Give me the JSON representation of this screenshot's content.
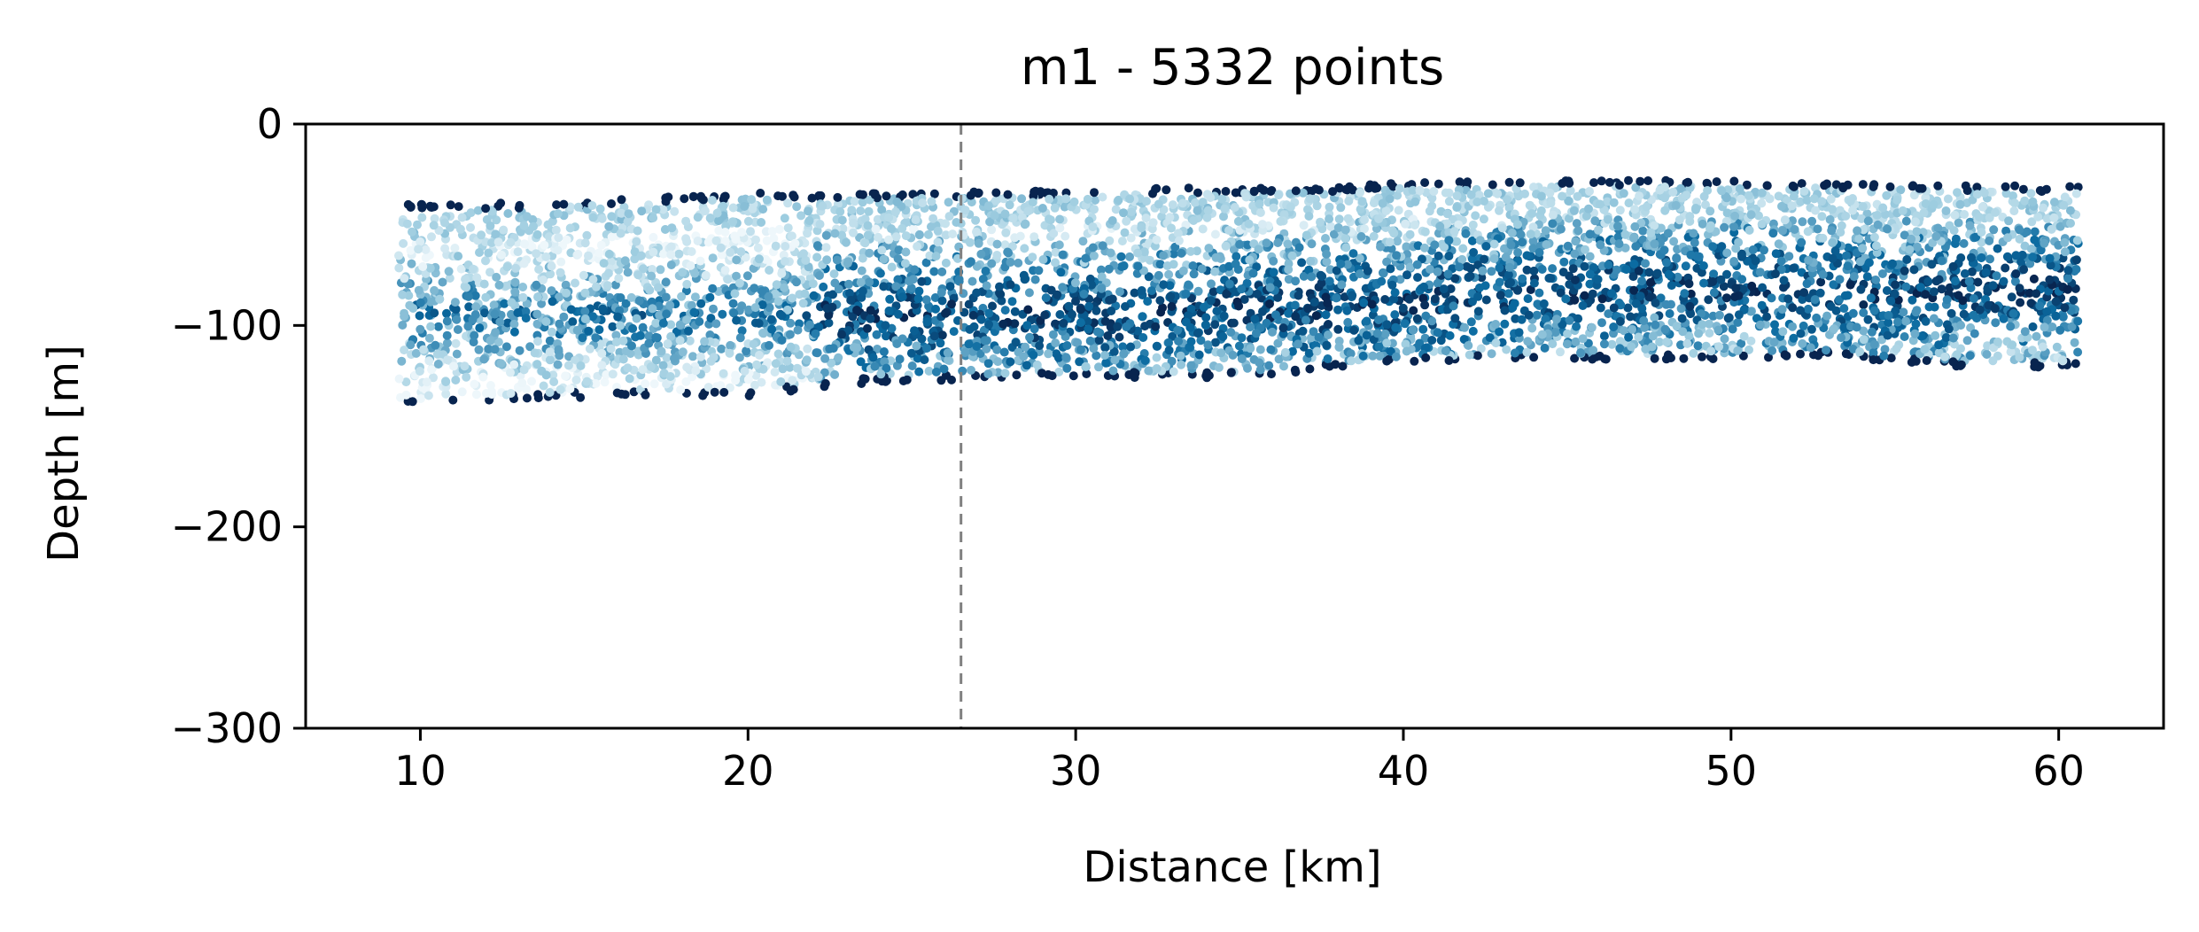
{
  "chart_data": {
    "type": "scatter",
    "title": "m1 - 5332 points",
    "xlabel": "Distance [km]",
    "ylabel": "Depth [m]",
    "xlim": [
      6.5,
      63.2
    ],
    "ylim": [
      -300,
      0
    ],
    "xticks": [
      10,
      20,
      30,
      40,
      50,
      60
    ],
    "xtick_labels": [
      "10",
      "20",
      "30",
      "40",
      "50",
      "60"
    ],
    "yticks": [
      0,
      -100,
      -200,
      -300
    ],
    "ytick_labels": [
      "0",
      "−100",
      "−200",
      "−300"
    ],
    "grid": false,
    "legend": "none",
    "colormap": "blues (white to dark navy)",
    "point_count": 5332,
    "reference_line": {
      "x": 26.5,
      "style": "dashed",
      "color": "#808080"
    },
    "top_boundary": [
      {
        "x": 9.3,
        "y": -40
      },
      {
        "x": 13,
        "y": -39
      },
      {
        "x": 16,
        "y": -37
      },
      {
        "x": 20,
        "y": -34
      },
      {
        "x": 26,
        "y": -34
      },
      {
        "x": 32,
        "y": -32
      },
      {
        "x": 38,
        "y": -31
      },
      {
        "x": 40,
        "y": -29
      },
      {
        "x": 45,
        "y": -28
      },
      {
        "x": 50,
        "y": -28
      },
      {
        "x": 55,
        "y": -30
      },
      {
        "x": 60.6,
        "y": -31
      }
    ],
    "bottom_boundary": [
      {
        "x": 9.3,
        "y": -140
      },
      {
        "x": 12,
        "y": -138
      },
      {
        "x": 16,
        "y": -135
      },
      {
        "x": 20,
        "y": -135
      },
      {
        "x": 24,
        "y": -128
      },
      {
        "x": 30,
        "y": -126
      },
      {
        "x": 35,
        "y": -126
      },
      {
        "x": 40,
        "y": -118
      },
      {
        "x": 45,
        "y": -117
      },
      {
        "x": 50,
        "y": -117
      },
      {
        "x": 53,
        "y": -115
      },
      {
        "x": 56,
        "y": -120
      },
      {
        "x": 60.6,
        "y": -121
      }
    ],
    "band_centers": [
      {
        "x": 9.3,
        "y": -95
      },
      {
        "x": 20,
        "y": -95
      },
      {
        "x": 30,
        "y": -95
      },
      {
        "x": 38,
        "y": -90
      },
      {
        "x": 45,
        "y": -82
      },
      {
        "x": 50,
        "y": -80
      },
      {
        "x": 55,
        "y": -85
      },
      {
        "x": 60.6,
        "y": -80
      }
    ],
    "colors": {
      "dark": "#08244f",
      "mid": "#0a6aa0",
      "light": "#9ecde0",
      "pale": "#eef7fb",
      "accent_green": "#1a7f1a"
    }
  }
}
